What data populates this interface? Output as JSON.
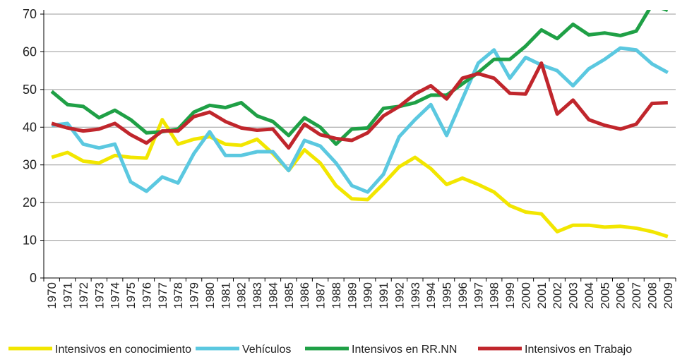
{
  "chart_data": {
    "type": "line",
    "categories": [
      "1970",
      "1971",
      "1972",
      "1973",
      "1974",
      "1975",
      "1976",
      "1977",
      "1978",
      "1979",
      "1980",
      "1981",
      "1982",
      "1983",
      "1984",
      "1985",
      "1986",
      "1987",
      "1988",
      "1989",
      "1990",
      "1991",
      "1992",
      "1993",
      "1994",
      "1995",
      "1996",
      "1997",
      "1998",
      "1999",
      "2000",
      "2001",
      "2002",
      "2003",
      "2004",
      "2005",
      "2006",
      "2007",
      "2008",
      "2009"
    ],
    "series": [
      {
        "name": "Intensivos en conocimiento",
        "color": "#f2e600",
        "values": [
          32,
          33.3,
          31,
          30.5,
          32.5,
          32,
          31.8,
          42,
          35.5,
          36.8,
          37.5,
          35.5,
          35.2,
          36.8,
          33,
          28.5,
          34,
          30.5,
          24.5,
          21,
          20.8,
          25,
          29.5,
          32,
          29,
          24.8,
          26.5,
          24.8,
          22.8,
          19.2,
          17.5,
          17,
          12.3,
          14,
          14,
          13.5,
          13.7,
          13.2,
          12.3,
          11
        ]
      },
      {
        "name": "Vehículos",
        "color": "#5bc8e0",
        "values": [
          40.5,
          41,
          35.5,
          34.5,
          35.5,
          25.5,
          23,
          26.8,
          25.2,
          33,
          38.8,
          32.5,
          32.5,
          33.5,
          33.5,
          28.5,
          36.5,
          35,
          30.5,
          24.5,
          22.8,
          27.5,
          37.5,
          42,
          46,
          37.8,
          47.5,
          57,
          60.5,
          53,
          58.5,
          56.5,
          55,
          51,
          55.5,
          58,
          61,
          60.5,
          56.8,
          54.5
        ]
      },
      {
        "name": "Intensivos en RR.NN",
        "color": "#1fa046",
        "values": [
          49.5,
          46,
          45.5,
          42.5,
          44.5,
          42,
          38.5,
          38.8,
          39.5,
          44,
          45.8,
          45.2,
          46.5,
          43,
          41.5,
          37.8,
          42.5,
          40,
          35.5,
          39.5,
          39.8,
          45,
          45.5,
          46.5,
          48.5,
          48.5,
          51.5,
          54.5,
          58,
          58,
          61.5,
          65.8,
          63.5,
          67.3,
          64.5,
          65,
          64.3,
          65.5,
          72.5,
          71
        ]
      },
      {
        "name": "Intensivos en Trabajo",
        "color": "#c0262c",
        "values": [
          41,
          39.8,
          39,
          39.5,
          41,
          38,
          35.8,
          39,
          39,
          42.8,
          44,
          41.5,
          39.8,
          39.2,
          39.5,
          34.5,
          40.8,
          38,
          37,
          36.5,
          38.5,
          43,
          45.5,
          48.8,
          51,
          47.5,
          53,
          54.2,
          53,
          49,
          48.8,
          57,
          43.5,
          47.2,
          42,
          40.5,
          39.5,
          40.8,
          46.3,
          46.5
        ]
      }
    ],
    "ylim": [
      0,
      70
    ],
    "yticks": [
      0,
      10,
      20,
      30,
      40,
      50,
      60,
      70
    ],
    "grid": true,
    "legend": "bottom"
  }
}
